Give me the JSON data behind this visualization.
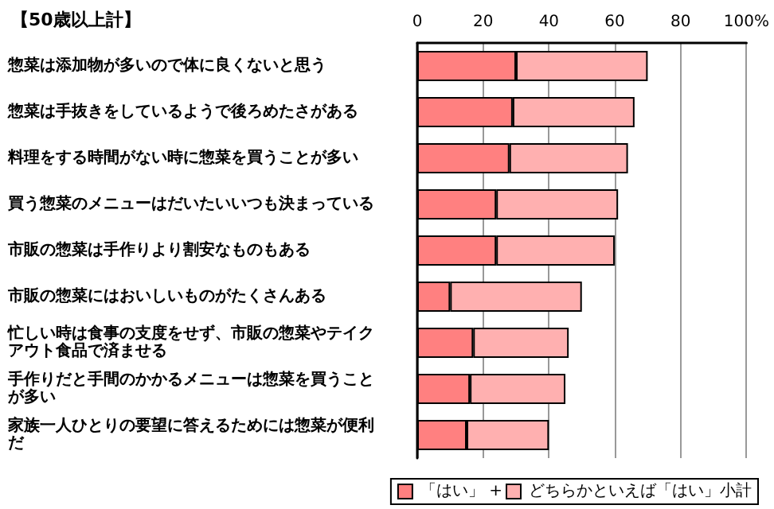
{
  "chart_data": {
    "type": "bar",
    "orientation": "horizontal",
    "stacked": true,
    "title": "【50歳以上計】",
    "categories": [
      "惣菜は添加物が多いので体に良くないと思う",
      "惣菜は手抜きをしているようで後ろめたさがある",
      "料理をする時間がない時に惣菜を買うことが多い",
      "買う惣菜のメニューはだいたいいつも決まっている",
      "市販の惣菜は手作りより割安なものもある",
      "市販の惣菜にはおいしいものがたくさんある",
      "忙しい時は食事の支度をせず、市販の惣菜やテイクアウト食品で済ませる",
      "手作りだと手間のかかるメニューは惣菜を買うことが多い",
      "家族一人ひとりの要望に答えるためには惣菜が便利だ"
    ],
    "series": [
      {
        "name": "「はい」 +",
        "color": "#ff8080",
        "values": [
          30,
          29,
          28,
          24,
          24,
          10,
          17,
          16,
          15
        ]
      },
      {
        "name": "どちらかといえば「はい」小計",
        "color": "#ffb0b0",
        "values": [
          40,
          37,
          36,
          37,
          36,
          40,
          29,
          29,
          25
        ]
      }
    ],
    "xlim": [
      0,
      100
    ],
    "xticks": [
      0,
      20,
      40,
      60,
      80,
      {
        "value": 100,
        "label": "100%"
      }
    ],
    "grid": "x",
    "legend": "bottom right"
  }
}
